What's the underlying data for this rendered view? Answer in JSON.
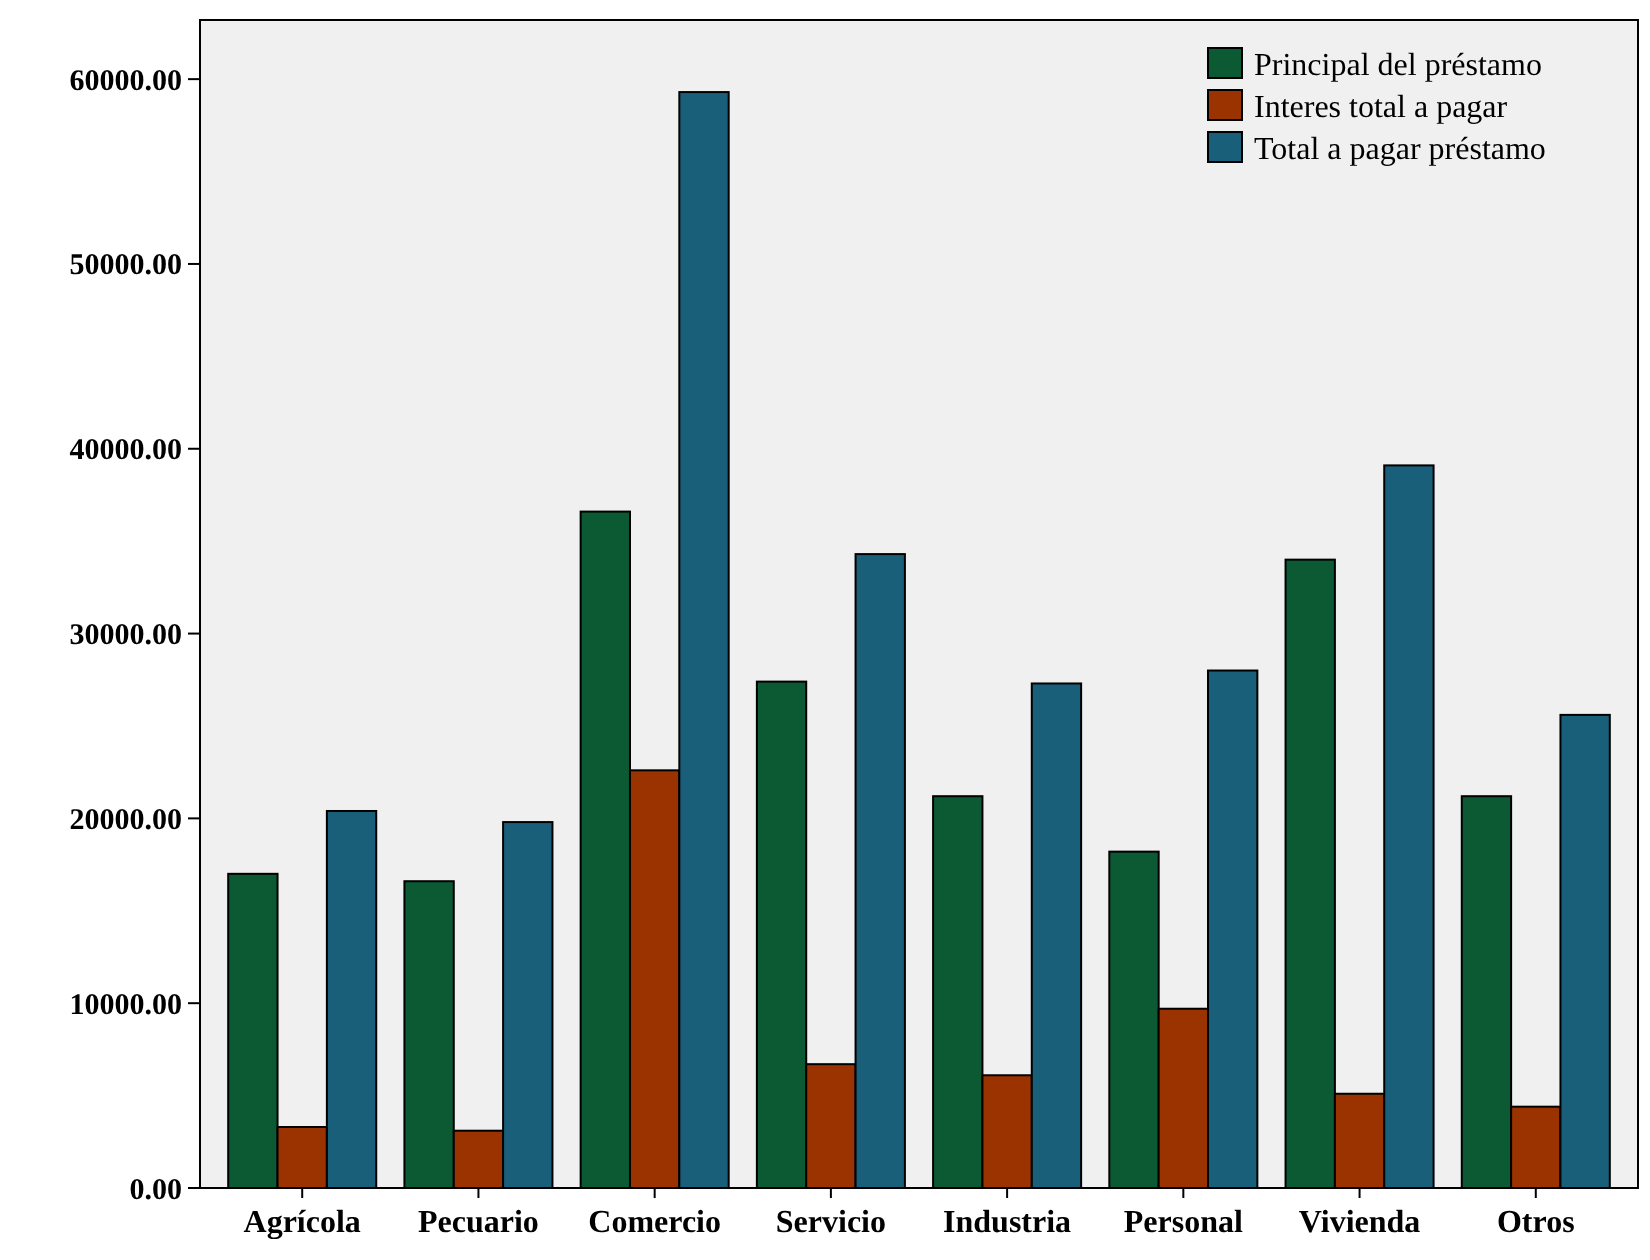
{
  "chart_data": {
    "type": "bar",
    "categories": [
      "Agrícola",
      "Pecuario",
      "Comercio",
      "Servicio",
      "Industria",
      "Personal",
      "Vivienda",
      "Otros"
    ],
    "series": [
      {
        "name": "Principal del préstamo",
        "color": "#0b5a33",
        "values": [
          17000,
          16600,
          36600,
          27400,
          21200,
          18200,
          34000,
          21200
        ]
      },
      {
        "name": "Interes total a pagar",
        "color": "#9b3300",
        "values": [
          3300,
          3100,
          22600,
          6700,
          6100,
          9700,
          5100,
          4400
        ]
      },
      {
        "name": "Total a pagar préstamo",
        "color": "#1a5f7a",
        "values": [
          20400,
          19800,
          59300,
          34300,
          27300,
          28000,
          39100,
          25600
        ]
      }
    ],
    "ylim": [
      0,
      63200
    ],
    "yticks": [
      {
        "value": 0,
        "label": "0.00"
      },
      {
        "value": 10000,
        "label": "10000.00"
      },
      {
        "value": 20000,
        "label": "20000.00"
      },
      {
        "value": 30000,
        "label": "30000.00"
      },
      {
        "value": 40000,
        "label": "40000.00"
      },
      {
        "value": 50000,
        "label": "50000.00"
      },
      {
        "value": 60000,
        "label": "60000.00"
      }
    ],
    "legend": "top right",
    "grid": false
  }
}
